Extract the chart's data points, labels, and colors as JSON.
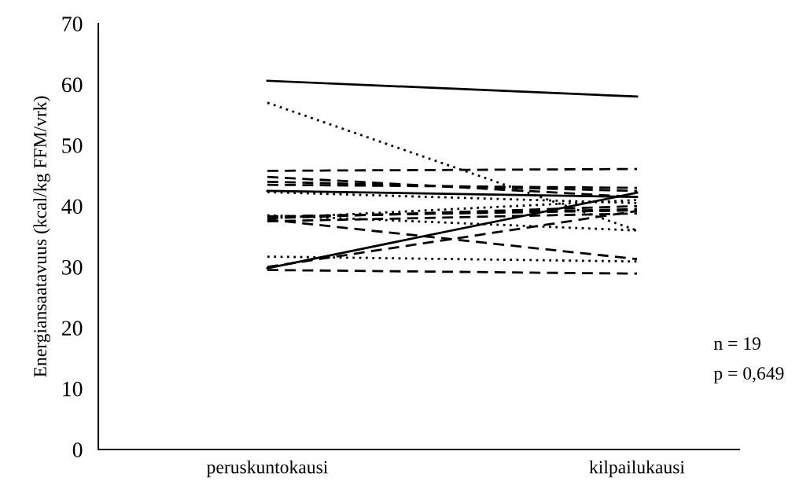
{
  "chart_data": {
    "type": "line",
    "ylabel": "Energiansaatavuus (kcal/kg FFM/vrk)",
    "categories": [
      "peruskuntokausi",
      "kilpailukausi"
    ],
    "ylim": [
      0,
      70
    ],
    "yticks": [
      0,
      10,
      20,
      30,
      40,
      50,
      60,
      70
    ],
    "grid": false,
    "legend": false,
    "marker": "none",
    "annotations": [
      "n = 19",
      "p = 0,649"
    ],
    "series": [
      {
        "color": "#000000",
        "line_style": "solid",
        "values": [
          60.6,
          58.0
        ]
      },
      {
        "color": "#000000",
        "line_style": "dotted",
        "values": [
          57.0,
          36.0
        ]
      },
      {
        "color": "#000000",
        "line_style": "dashed",
        "values": [
          45.8,
          46.1
        ]
      },
      {
        "color": "#000000",
        "line_style": "dashed",
        "values": [
          44.8,
          41.5
        ]
      },
      {
        "color": "#000000",
        "line_style": "dashed",
        "values": [
          44.0,
          42.5
        ]
      },
      {
        "color": "#000000",
        "line_style": "dashed",
        "values": [
          43.5,
          43.0
        ]
      },
      {
        "color": "#000000",
        "line_style": "solid",
        "values": [
          42.5,
          41.5
        ]
      },
      {
        "color": "#000000",
        "line_style": "dotted",
        "values": [
          42.3,
          40.5
        ]
      },
      {
        "color": "#000000",
        "line_style": "dashed",
        "values": [
          38.3,
          39.3
        ]
      },
      {
        "color": "#000000",
        "line_style": "dashed",
        "values": [
          38.0,
          40.0
        ]
      },
      {
        "color": "#000000",
        "line_style": "dotted",
        "values": [
          38.5,
          36.0
        ]
      },
      {
        "color": "#000000",
        "line_style": "dashed",
        "values": [
          37.8,
          31.3
        ]
      },
      {
        "color": "#000000",
        "line_style": "dashed",
        "values": [
          37.5,
          38.8
        ]
      },
      {
        "color": "#000000",
        "line_style": "dotted",
        "values": [
          38.0,
          41.0
        ]
      },
      {
        "color": "#000000",
        "line_style": "dashed",
        "values": [
          38.2,
          39.5
        ]
      },
      {
        "color": "#000000",
        "line_style": "dotted",
        "values": [
          31.7,
          30.9
        ]
      },
      {
        "color": "#000000",
        "line_style": "dashed",
        "values": [
          30.0,
          39.2
        ]
      },
      {
        "color": "#000000",
        "line_style": "solid",
        "values": [
          29.8,
          42.2
        ]
      },
      {
        "color": "#000000",
        "line_style": "dashed",
        "values": [
          29.5,
          28.9
        ]
      }
    ]
  }
}
